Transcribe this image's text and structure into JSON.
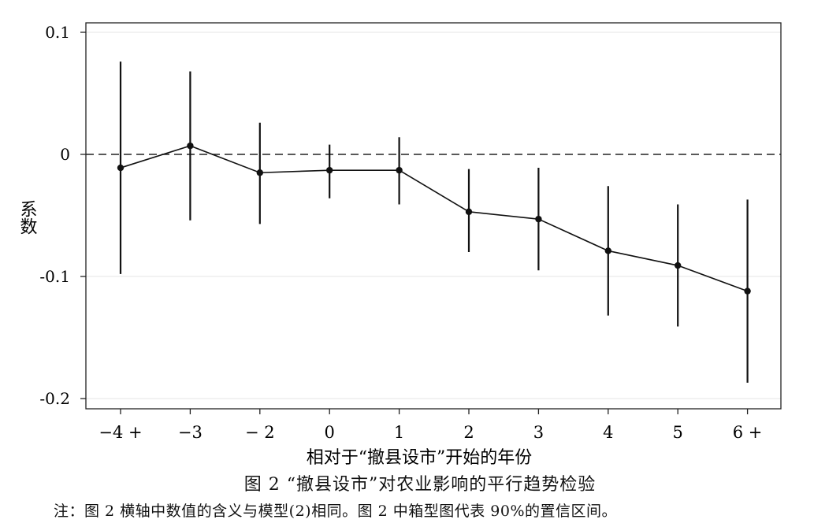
{
  "chart_data": {
    "type": "line",
    "xlabel": "相对于“撤县设市”开始的年份",
    "ylabel": "系数",
    "categories": [
      "−4 +",
      "−3",
      "− 2",
      "0",
      "1",
      "2",
      "3",
      "4",
      "5",
      "6 +"
    ],
    "ylim": [
      -0.2,
      0.1
    ],
    "yticks": [
      {
        "value": 0.1,
        "label": "0.1"
      },
      {
        "value": 0,
        "label": "0"
      },
      {
        "value": -0.1,
        "label": "-0.1"
      },
      {
        "value": -0.2,
        "label": "-0.2"
      }
    ],
    "series": [
      {
        "values": [
          -0.011,
          0.007,
          -0.015,
          -0.013,
          -0.013,
          -0.047,
          -0.053,
          -0.079,
          -0.091,
          -0.112
        ],
        "lower": [
          -0.098,
          -0.054,
          -0.057,
          -0.036,
          -0.041,
          -0.08,
          -0.095,
          -0.132,
          -0.141,
          -0.187
        ],
        "upper": [
          0.076,
          0.068,
          0.026,
          0.008,
          0.014,
          -0.012,
          -0.011,
          -0.026,
          -0.041,
          -0.037
        ]
      }
    ],
    "reference_line": {
      "y": 0,
      "style": "dashed"
    },
    "grid": "horizontal-light",
    "legend": "none"
  },
  "caption": "图 2 “撤县设市”对农业影响的平行趋势检验",
  "note": "注：图 2 横轴中数值的含义与模型(2)相同。图 2 中箱型图代表 90%的置信区间。"
}
